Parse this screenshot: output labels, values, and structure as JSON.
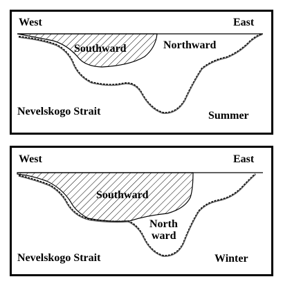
{
  "panels": [
    {
      "labels": {
        "west": "West",
        "east": "East",
        "southward": "Southward",
        "northward": "Northward",
        "strait": "Nevelskogo Strait",
        "season": "Summer"
      }
    },
    {
      "labels": {
        "west": "West",
        "east": "East",
        "southward": "Southward",
        "northward_line1": "North",
        "northward_line2": "ward",
        "strait": "Nevelskogo Strait",
        "season": "Winter"
      }
    }
  ]
}
